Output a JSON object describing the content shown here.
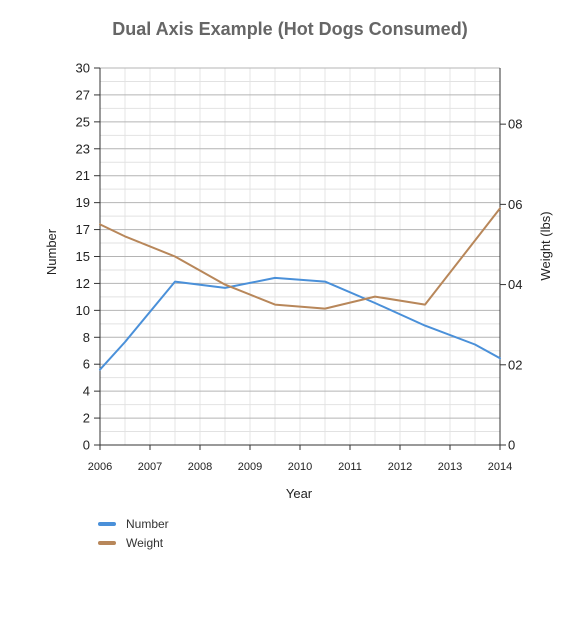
{
  "chart_data": {
    "type": "line",
    "title": "Dual Axis Example (Hot Dogs Consumed)",
    "xlabel": "Year",
    "ylabel_left": "Number",
    "ylabel_right": "Weight (lbs)",
    "x_ticks": [
      "2006",
      "2007",
      "2008",
      "2009",
      "2010",
      "2011",
      "2012",
      "2013",
      "2014"
    ],
    "x_range": [
      2006,
      2014
    ],
    "y_left_ticks": [
      "0",
      "2",
      "4",
      "6",
      "8",
      "10",
      "12",
      "15",
      "17",
      "19",
      "21",
      "23",
      "25",
      "27",
      "30"
    ],
    "y_left_range": [
      0,
      30
    ],
    "y_right_ticks": [
      "0",
      "02",
      "04",
      "06",
      "08"
    ],
    "y_right_range": [
      0,
      0.94
    ],
    "grid": true,
    "legend_position": "bottom-left",
    "series": [
      {
        "name": "Number",
        "axis": "left",
        "color": "#4a90d9",
        "x": [
          2006,
          2006.5,
          2007.5,
          2008.5,
          2009.5,
          2010.5,
          2011.5,
          2012.5,
          2013.5,
          2014
        ],
        "y": [
          6.0,
          8.2,
          13.0,
          12.5,
          13.3,
          13.0,
          11.3,
          9.5,
          8.0,
          6.9
        ]
      },
      {
        "name": "Weight",
        "axis": "right",
        "color": "#b8875a",
        "x": [
          2006,
          2006.5,
          2007.5,
          2008.5,
          2009.5,
          2010.5,
          2011.5,
          2012.5,
          2013.5,
          2014
        ],
        "y": [
          0.55,
          0.52,
          0.47,
          0.4,
          0.35,
          0.34,
          0.37,
          0.35,
          0.51,
          0.59
        ]
      }
    ]
  }
}
